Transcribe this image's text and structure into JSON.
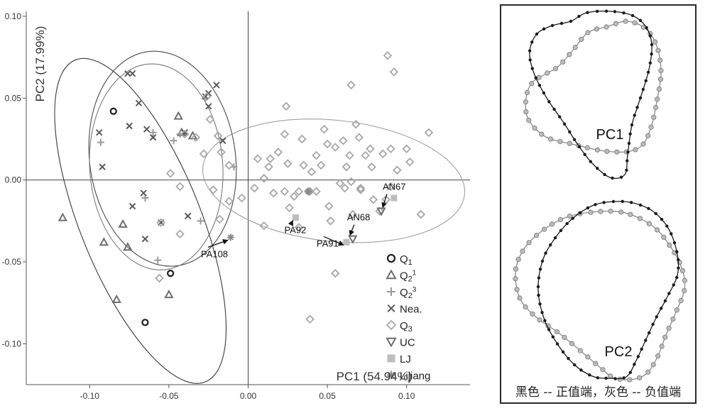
{
  "chart_data": {
    "type": "scatter",
    "xlabel": "PC1 (54.94%)",
    "ylabel": "PC2 (17.99%)",
    "xlim": [
      -0.14,
      0.14
    ],
    "ylim": [
      -0.125,
      0.103
    ],
    "xticks": [
      "-0.10",
      "-0.05",
      "0.00",
      "0.05",
      "0.10"
    ],
    "xtick_values": [
      -0.1,
      -0.05,
      0.0,
      0.05,
      0.1
    ],
    "yticks": [
      "0.10",
      "0.05",
      "0.00",
      "-0.05",
      "-0.10"
    ],
    "ytick_values": [
      0.1,
      0.05,
      0.0,
      -0.05,
      -0.1
    ],
    "zero_lines": true,
    "legend_position": "bottom-right",
    "colors": {
      "dark": "#2b2b2b",
      "mid": "#6e6e6e",
      "light": "#a8a8a8",
      "ellipse_light": "#a0a0a0"
    },
    "series": [
      {
        "name": "Q1",
        "legend_main": "Q",
        "legend_sub": "1",
        "legend_sup": "",
        "marker": "circle",
        "color": "#1e1e1e",
        "points": [
          [
            -0.085,
            0.042
          ],
          [
            -0.049,
            -0.057
          ],
          [
            -0.065,
            -0.087
          ]
        ]
      },
      {
        "name": "Q2¹",
        "legend_main": "Q",
        "legend_sub": "2",
        "legend_sup": "1",
        "marker": "triangle-up",
        "color": "#6e6e6e",
        "points": [
          [
            -0.117,
            -0.023
          ],
          [
            -0.091,
            -0.038
          ],
          [
            -0.079,
            -0.027
          ],
          [
            -0.076,
            -0.041
          ],
          [
            -0.044,
            0.039
          ],
          [
            -0.042,
            0.029
          ],
          [
            -0.035,
            0.027
          ],
          [
            -0.05,
            -0.07
          ],
          [
            -0.083,
            -0.073
          ]
        ]
      },
      {
        "name": "Q2³",
        "legend_main": "Q",
        "legend_sub": "2",
        "legend_sup": "3",
        "marker": "plus",
        "color": "#9a9a9a",
        "points": [
          [
            -0.093,
            0.023
          ],
          [
            -0.065,
            -0.011
          ],
          [
            -0.06,
            0.029
          ],
          [
            -0.047,
            0.024
          ],
          [
            -0.043,
            0.028
          ],
          [
            -0.027,
            0.05
          ],
          [
            -0.03,
            -0.025
          ],
          [
            -0.057,
            -0.049
          ],
          [
            -0.009,
            0.008
          ]
        ]
      },
      {
        "name": "Nea.",
        "legend_main": "Nea.",
        "legend_sub": "",
        "legend_sup": "",
        "marker": "x",
        "color": "#5a5a5a",
        "points": [
          [
            -0.076,
            0.065
          ],
          [
            -0.073,
            0.065
          ],
          [
            -0.069,
            0.047
          ],
          [
            -0.064,
            0.031
          ],
          [
            -0.075,
            0.033
          ],
          [
            -0.066,
            -0.008
          ],
          [
            -0.073,
            -0.016
          ],
          [
            -0.065,
            -0.036
          ],
          [
            -0.055,
            -0.026
          ],
          [
            -0.06,
            0.026
          ],
          [
            -0.04,
            0.029
          ],
          [
            -0.038,
            -0.022
          ],
          [
            -0.027,
            0.051
          ],
          [
            -0.025,
            0.045
          ],
          [
            -0.025,
            0.053
          ],
          [
            -0.02,
            0.058
          ],
          [
            -0.016,
            0.024
          ],
          [
            -0.094,
            0.029
          ],
          [
            -0.092,
            0.008
          ]
        ]
      },
      {
        "name": "Q3",
        "legend_main": "Q",
        "legend_sub": "3",
        "legend_sup": "",
        "marker": "diamond",
        "color": "#a8a8a8",
        "points": [
          [
            -0.049,
            0.004
          ],
          [
            -0.043,
            -0.004
          ],
          [
            -0.04,
            0.028
          ],
          [
            -0.033,
            0.026
          ],
          [
            -0.028,
            0.016
          ],
          [
            -0.026,
            0.051
          ],
          [
            -0.024,
            0.037
          ],
          [
            -0.019,
            0.027
          ],
          [
            -0.017,
            0.017
          ],
          [
            -0.022,
            -0.006
          ],
          [
            -0.012,
            -0.013
          ],
          [
            -0.018,
            -0.024
          ],
          [
            -0.043,
            -0.033
          ],
          [
            -0.055,
            -0.026
          ],
          [
            -0.056,
            -0.06
          ],
          [
            -0.012,
            0.009
          ],
          [
            -0.004,
            -0.011
          ],
          [
            0.004,
            -0.005
          ],
          [
            0.006,
            0.013
          ],
          [
            0.01,
            0.001
          ],
          [
            0.013,
            0.008
          ],
          [
            0.016,
            -0.008
          ],
          [
            0.01,
            -0.028
          ],
          [
            0.014,
            0.013
          ],
          [
            0.019,
            0.017
          ],
          [
            0.023,
            0.028
          ],
          [
            0.024,
            0.045
          ],
          [
            0.025,
            0.01
          ],
          [
            0.023,
            -0.007
          ],
          [
            0.026,
            -0.017
          ],
          [
            0.029,
            -0.01
          ],
          [
            0.032,
            -0.029
          ],
          [
            0.032,
            -0.007
          ],
          [
            0.034,
            0.025
          ],
          [
            0.035,
            0.009
          ],
          [
            0.04,
            0.005
          ],
          [
            0.039,
            -0.007
          ],
          [
            0.038,
            -0.007
          ],
          [
            0.043,
            -0.007
          ],
          [
            0.046,
            0.009
          ],
          [
            0.048,
            0.031
          ],
          [
            0.05,
            0.022
          ],
          [
            0.051,
            -0.016
          ],
          [
            0.052,
            -0.025
          ],
          [
            0.055,
            0.02
          ],
          [
            0.058,
            -0.002
          ],
          [
            0.061,
            -0.005
          ],
          [
            0.062,
            0.008
          ],
          [
            0.064,
            0.015
          ],
          [
            0.065,
            0.058
          ],
          [
            0.065,
            -0.001
          ],
          [
            0.066,
            -0.021
          ],
          [
            0.068,
            0.034
          ],
          [
            0.07,
            0.026
          ],
          [
            0.071,
            -0.005
          ],
          [
            0.074,
            0.015
          ],
          [
            0.077,
            0.019
          ],
          [
            0.078,
            0.008
          ],
          [
            0.083,
            -0.019
          ],
          [
            0.087,
            -0.012
          ],
          [
            0.09,
            0.019
          ],
          [
            0.092,
            0.066
          ],
          [
            0.094,
            0.006
          ],
          [
            0.1,
            0.019
          ],
          [
            0.102,
            0.011
          ],
          [
            0.109,
            -0.021
          ],
          [
            0.114,
            0.029
          ],
          [
            0.088,
            0.076
          ],
          [
            0.039,
            -0.085
          ],
          [
            0.071,
            -0.006
          ],
          [
            0.079,
            -0.012
          ],
          [
            0.085,
            0.016
          ],
          [
            0.09,
            -0.004
          ],
          [
            0.055,
            -0.057
          ],
          [
            0.06,
            0.024
          ],
          [
            0.043,
            0.015
          ]
        ]
      },
      {
        "name": "UC",
        "legend_main": "UC",
        "legend_sub": "",
        "legend_sup": "",
        "marker": "triangle-down",
        "color": "#6e6e6e",
        "points": [
          [
            0.066,
            -0.036
          ],
          [
            0.084,
            -0.019
          ]
        ]
      },
      {
        "name": "LJ",
        "legend_main": "LJ",
        "legend_sub": "",
        "legend_sup": "",
        "marker": "square",
        "color": "#bdbdbd",
        "points": [
          [
            0.03,
            -0.023
          ],
          [
            0.062,
            -0.038
          ],
          [
            0.092,
            -0.011
          ]
        ]
      },
      {
        "name": "Lijiang",
        "legend_main": "Lijiang",
        "legend_sub": "",
        "legend_sup": "",
        "marker": "asterisk",
        "color": "#888888",
        "points": [
          [
            -0.011,
            -0.035
          ],
          [
            0.038,
            -0.007
          ]
        ]
      }
    ],
    "ellipses": [
      {
        "center": [
          -0.054,
          0.013
        ],
        "rx": 0.046,
        "ry": 0.066,
        "angle": -8,
        "color": "#4a4a4a"
      },
      {
        "center": [
          -0.058,
          0.008
        ],
        "rx": 0.042,
        "ry": 0.063,
        "angle": -4,
        "color": "#7a7a7a"
      },
      {
        "center": [
          -0.068,
          -0.025
        ],
        "rx": 0.038,
        "ry": 0.106,
        "angle": -22,
        "color": "#3a3a3a"
      },
      {
        "center": [
          0.054,
          -0.0005
        ],
        "rx": 0.083,
        "ry": 0.037,
        "angle": 6,
        "color": "#a0a0a0"
      }
    ],
    "annotations": [
      {
        "label": "AN67",
        "point": [
          0.084,
          -0.019
        ]
      },
      {
        "label": "AN68",
        "point": [
          0.066,
          -0.036
        ]
      },
      {
        "label": "PA91",
        "point": [
          0.062,
          -0.038
        ]
      },
      {
        "label": "PA92",
        "point": [
          0.03,
          -0.023
        ]
      },
      {
        "label": "PA108",
        "point": [
          -0.011,
          -0.035
        ]
      }
    ]
  },
  "panel": {
    "pc1_label": "PC1",
    "pc2_label": "PC2",
    "caption": "黑色 -- 正值端，灰色 -- 负值端"
  }
}
